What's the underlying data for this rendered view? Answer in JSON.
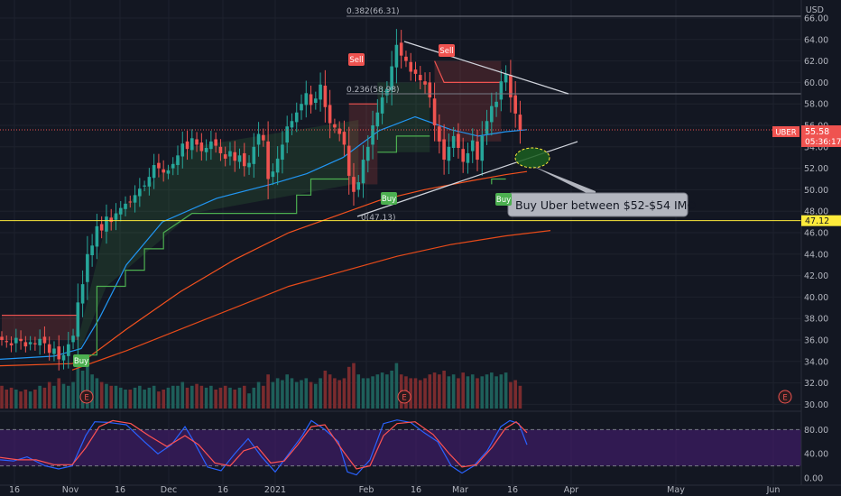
{
  "colors": {
    "background": "#131722",
    "grid": "#1e222d",
    "up": "#26a69a",
    "down": "#ef5350",
    "ema_short": "#2196f3",
    "ema_mid": "#f4511e",
    "ema_long": "#e64a19",
    "supertrend_up": "#4caf50",
    "supertrend_down": "#ef5350",
    "support_line": "#ffeb3b",
    "rsi_k": "#2962ff",
    "rsi_d": "#ff5252",
    "rsi_band": "#4a1d7a",
    "annotation_fill": "#b2b5be",
    "ellipse_fill": "#1b5e20",
    "ellipse_stroke": "#ffeb3b"
  },
  "price_axis": {
    "currency": "USD",
    "ticks": [
      "66.00",
      "64.00",
      "62.00",
      "60.00",
      "58.00",
      "56.00",
      "54.00",
      "52.00",
      "50.00",
      "48.00",
      "46.00",
      "44.00",
      "42.00",
      "40.00",
      "38.00",
      "36.00",
      "34.00",
      "32.00",
      "30.00"
    ],
    "last_price_label": "55.58",
    "countdown": "05:36:17",
    "symbol": "UBER",
    "support_label": "47.12"
  },
  "oscillator_axis": {
    "ticks": [
      "80.00",
      "40.00",
      "0.00"
    ]
  },
  "time_axis": {
    "ticks": [
      "16",
      "Nov",
      "16",
      "Dec",
      "16",
      "2021",
      "Feb",
      "16",
      "Mar",
      "16",
      "Apr",
      "May",
      "Jun"
    ]
  },
  "annotations": {
    "fib_0382": "0.382(66.31)",
    "fib_0236": "0.236(58.98)",
    "fib_0": "0(47.13)",
    "callout": "Buy Uber between $52-$54 IMO",
    "signals": [
      "Buy",
      "Sell",
      "Buy",
      "Sell",
      "Buy"
    ],
    "earnings": [
      "E",
      "E",
      "E"
    ]
  },
  "chart_data": {
    "type": "candlestick",
    "symbol": "UBER",
    "x": [
      "Oct 12",
      "Oct 13",
      "Oct 14",
      "Oct 15",
      "Oct 16",
      "Oct 19",
      "Oct 20",
      "Oct 21",
      "Oct 22",
      "Oct 23",
      "Oct 26",
      "Oct 27",
      "Oct 28",
      "Oct 29",
      "Oct 30",
      "Nov 2",
      "Nov 3",
      "Nov 4",
      "Nov 5",
      "Nov 6",
      "Nov 9",
      "Nov 10",
      "Nov 11",
      "Nov 12",
      "Nov 13",
      "Nov 16",
      "Nov 17",
      "Nov 18",
      "Nov 19",
      "Nov 20",
      "Nov 23",
      "Nov 24",
      "Nov 25",
      "Nov 27",
      "Nov 30",
      "Dec 1",
      "Dec 2",
      "Dec 3",
      "Dec 4",
      "Dec 7",
      "Dec 8",
      "Dec 9",
      "Dec 10",
      "Dec 11",
      "Dec 14",
      "Dec 15",
      "Dec 16",
      "Dec 17",
      "Dec 18",
      "Dec 21",
      "Dec 22",
      "Dec 23",
      "Dec 24",
      "Dec 28",
      "Dec 29",
      "Dec 30",
      "Dec 31",
      "Jan 4",
      "Jan 5",
      "Jan 6",
      "Jan 7",
      "Jan 8",
      "Jan 11",
      "Jan 12",
      "Jan 13",
      "Jan 14",
      "Jan 15",
      "Jan 19",
      "Jan 20",
      "Jan 21",
      "Jan 22",
      "Jan 25",
      "Jan 26",
      "Jan 27",
      "Jan 28",
      "Jan 29",
      "Feb 1",
      "Feb 2",
      "Feb 3",
      "Feb 4",
      "Feb 5",
      "Feb 8",
      "Feb 9",
      "Feb 10",
      "Feb 11",
      "Feb 12",
      "Feb 16",
      "Feb 17",
      "Feb 18",
      "Feb 19",
      "Feb 22",
      "Feb 23",
      "Feb 24",
      "Feb 25",
      "Feb 26",
      "Mar 1",
      "Mar 2",
      "Mar 3",
      "Mar 4",
      "Mar 5",
      "Mar 8",
      "Mar 9",
      "Mar 10",
      "Mar 11",
      "Mar 12",
      "Mar 15",
      "Mar 16",
      "Mar 17",
      "Mar 18",
      "Mar 19"
    ],
    "close": [
      36.0,
      35.8,
      35.5,
      36.2,
      35.9,
      35.4,
      35.8,
      35.6,
      36.1,
      35.7,
      34.8,
      35.2,
      34.2,
      34.6,
      35.6,
      36.4,
      39.5,
      41.2,
      44.0,
      44.8,
      46.6,
      46.2,
      47.5,
      47.0,
      47.8,
      48.3,
      48.7,
      48.9,
      49.5,
      50.1,
      50.4,
      51.2,
      52.3,
      52.0,
      51.6,
      51.8,
      52.4,
      53.2,
      54.3,
      53.8,
      54.8,
      54.2,
      53.6,
      53.9,
      54.5,
      54.1,
      53.4,
      52.9,
      53.6,
      52.7,
      53.2,
      52.2,
      52.5,
      54.0,
      55.2,
      54.6,
      51.0,
      51.7,
      52.9,
      54.2,
      55.9,
      56.4,
      57.2,
      58.0,
      59.0,
      57.9,
      58.5,
      59.8,
      57.7,
      56.2,
      55.8,
      55.2,
      54.2,
      51.3,
      49.8,
      50.7,
      52.8,
      54.0,
      56.0,
      57.2,
      58.6,
      59.4,
      61.5,
      63.5,
      62.5,
      62.0,
      61.0,
      60.8,
      60.2,
      59.8,
      58.6,
      56.0,
      54.5,
      52.8,
      54.0,
      55.0,
      53.9,
      52.6,
      53.4,
      54.6,
      52.8,
      55.0,
      56.4,
      57.8,
      58.2,
      60.1,
      60.8,
      58.6,
      57.1,
      55.58
    ],
    "volume_relative": [
      0.6,
      0.5,
      0.55,
      0.5,
      0.45,
      0.5,
      0.45,
      0.5,
      0.6,
      0.55,
      0.7,
      0.6,
      0.8,
      0.65,
      0.6,
      0.7,
      1.2,
      1.0,
      1.4,
      0.9,
      0.8,
      0.7,
      0.65,
      0.6,
      0.6,
      0.55,
      0.5,
      0.5,
      0.55,
      0.6,
      0.5,
      0.55,
      0.6,
      0.45,
      0.5,
      0.55,
      0.6,
      0.6,
      0.7,
      0.55,
      0.6,
      0.65,
      0.6,
      0.55,
      0.6,
      0.5,
      0.55,
      0.6,
      0.55,
      0.5,
      0.55,
      0.6,
      0.4,
      0.55,
      0.7,
      0.6,
      0.9,
      0.7,
      0.8,
      0.75,
      0.9,
      0.8,
      0.7,
      0.75,
      0.8,
      0.7,
      0.65,
      0.8,
      1.0,
      0.9,
      0.8,
      0.75,
      0.8,
      1.1,
      1.2,
      0.9,
      0.8,
      0.8,
      0.85,
      0.9,
      0.95,
      0.9,
      1.0,
      1.2,
      0.9,
      0.85,
      0.8,
      0.8,
      0.75,
      0.8,
      0.9,
      0.95,
      0.9,
      1.0,
      0.85,
      0.9,
      0.8,
      0.95,
      0.85,
      0.9,
      0.8,
      0.85,
      0.9,
      0.95,
      0.85,
      0.9,
      0.95,
      0.7,
      0.75,
      0.6
    ],
    "ylim": [
      30,
      67
    ],
    "horizontal_levels": [
      66.31,
      58.98,
      47.12
    ],
    "oscillator": {
      "type": "stochastic_rsi",
      "ylim": [
        0,
        100
      ],
      "bands": [
        20,
        80
      ]
    }
  }
}
